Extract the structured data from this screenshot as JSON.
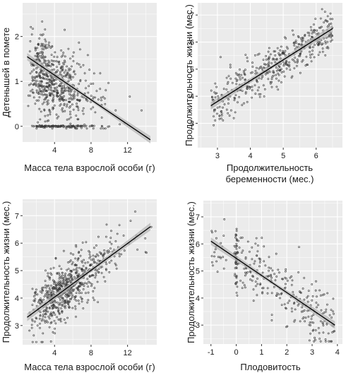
{
  "colors": {
    "panel": "#ebebeb",
    "grid": "#ffffff",
    "point": "#3a3a3a",
    "line": "#000000",
    "band": "#b3b3b3"
  },
  "chart_data": [
    {
      "type": "scatter",
      "xlabel": "Масса тела взрослой особи (г)",
      "ylabel": "Детенышей в помете",
      "xlim": [
        0.5,
        15.2
      ],
      "ylim": [
        -0.35,
        2.75
      ],
      "xticks": [
        4,
        8,
        12
      ],
      "yticks": [
        0,
        1,
        2
      ],
      "trend": {
        "x": [
          1,
          14.5
        ],
        "y": [
          1.55,
          -0.3
        ]
      },
      "n_points": 700
    },
    {
      "type": "scatter",
      "xlabel": "Продолжительность беременности (мес.)",
      "ylabel": "Продолжительность жизни (мес.)",
      "xlim": [
        2.4,
        6.8
      ],
      "ylim": [
        2.1,
        7.45
      ],
      "xticks": [
        3,
        4,
        5,
        6
      ],
      "yticks": [
        3,
        4,
        5,
        6,
        7
      ],
      "trend": {
        "x": [
          2.8,
          6.5
        ],
        "y": [
          3.65,
          6.5
        ]
      },
      "n_points": 450
    },
    {
      "type": "scatter",
      "xlabel": "Масса тела взрослой особи (г)",
      "ylabel": "Продолжительность жизни (мес.)",
      "xlim": [
        0.5,
        15.2
      ],
      "ylim": [
        2.3,
        7.6
      ],
      "xticks": [
        4,
        8,
        12
      ],
      "yticks": [
        3,
        4,
        5,
        6,
        7
      ],
      "trend": {
        "x": [
          1,
          14.5
        ],
        "y": [
          3.3,
          6.6
        ]
      },
      "n_points": 650
    },
    {
      "type": "scatter",
      "xlabel": "Плодовитость",
      "ylabel": "Продолжительность жизни (мес.)",
      "xlim": [
        -1.3,
        4.2
      ],
      "ylim": [
        2.3,
        7.6
      ],
      "xticks": [
        -1,
        0,
        1,
        2,
        3,
        4
      ],
      "yticks": [
        3,
        4,
        5,
        6,
        7
      ],
      "trend": {
        "x": [
          -1,
          3.9
        ],
        "y": [
          6.1,
          3.0
        ]
      },
      "n_points": 320
    }
  ]
}
